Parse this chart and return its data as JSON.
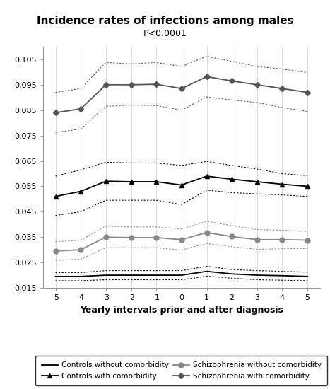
{
  "title": "Incidence rates of infections among males",
  "subtitle": "P<0.0001",
  "xlabel": "Yearly intervals prior and after diagnosis",
  "x": [
    -5,
    -4,
    -3,
    -2,
    -1,
    0,
    1,
    2,
    3,
    4,
    5
  ],
  "controls_without": [
    0.0195,
    0.0195,
    0.02,
    0.02,
    0.02,
    0.02,
    0.0215,
    0.0205,
    0.02,
    0.0198,
    0.0195
  ],
  "controls_without_upper": [
    0.021,
    0.021,
    0.0218,
    0.0218,
    0.0218,
    0.0218,
    0.0235,
    0.0222,
    0.0218,
    0.0215,
    0.0212
  ],
  "controls_without_lower": [
    0.0178,
    0.0178,
    0.0182,
    0.0182,
    0.0182,
    0.0182,
    0.0196,
    0.0188,
    0.0182,
    0.018,
    0.0178
  ],
  "controls_with": [
    0.051,
    0.053,
    0.057,
    0.0568,
    0.0568,
    0.0555,
    0.059,
    0.0578,
    0.0568,
    0.0558,
    0.055
  ],
  "controls_with_upper": [
    0.059,
    0.0615,
    0.0645,
    0.0642,
    0.0642,
    0.0632,
    0.0648,
    0.0632,
    0.0618,
    0.06,
    0.0592
  ],
  "controls_with_lower": [
    0.0435,
    0.045,
    0.0495,
    0.0495,
    0.0495,
    0.0478,
    0.0535,
    0.0525,
    0.052,
    0.0516,
    0.051
  ],
  "schiz_without": [
    0.0295,
    0.03,
    0.035,
    0.0348,
    0.0348,
    0.034,
    0.0368,
    0.0352,
    0.034,
    0.034,
    0.0338
  ],
  "schiz_without_upper": [
    0.0332,
    0.0338,
    0.0393,
    0.039,
    0.039,
    0.0382,
    0.0412,
    0.0395,
    0.038,
    0.0377,
    0.0372
  ],
  "schiz_without_lower": [
    0.0258,
    0.0263,
    0.0308,
    0.0308,
    0.0308,
    0.0299,
    0.0325,
    0.0312,
    0.0302,
    0.0304,
    0.0305
  ],
  "schiz_with": [
    0.084,
    0.0855,
    0.095,
    0.095,
    0.0952,
    0.0935,
    0.0982,
    0.0965,
    0.095,
    0.0935,
    0.092
  ],
  "schiz_with_upper": [
    0.092,
    0.0935,
    0.1038,
    0.1032,
    0.1038,
    0.1022,
    0.1062,
    0.1042,
    0.1022,
    0.1012,
    0.0998
  ],
  "schiz_with_lower": [
    0.0762,
    0.0776,
    0.0865,
    0.087,
    0.0868,
    0.085,
    0.0902,
    0.089,
    0.088,
    0.086,
    0.0845
  ],
  "ylim": [
    0.015,
    0.11
  ],
  "yticks": [
    0.015,
    0.025,
    0.035,
    0.045,
    0.055,
    0.065,
    0.075,
    0.085,
    0.095,
    0.105
  ],
  "color_black": "#000000",
  "color_dark_gray": "#555555",
  "color_medium_gray": "#888888",
  "color_light_gray": "#aaaaaa",
  "legend_labels": [
    "Controls without comorbidity",
    "Controls with comorbidity",
    "Schizophrenia without comorbidity",
    "Schizophrenia with comorbidity"
  ]
}
